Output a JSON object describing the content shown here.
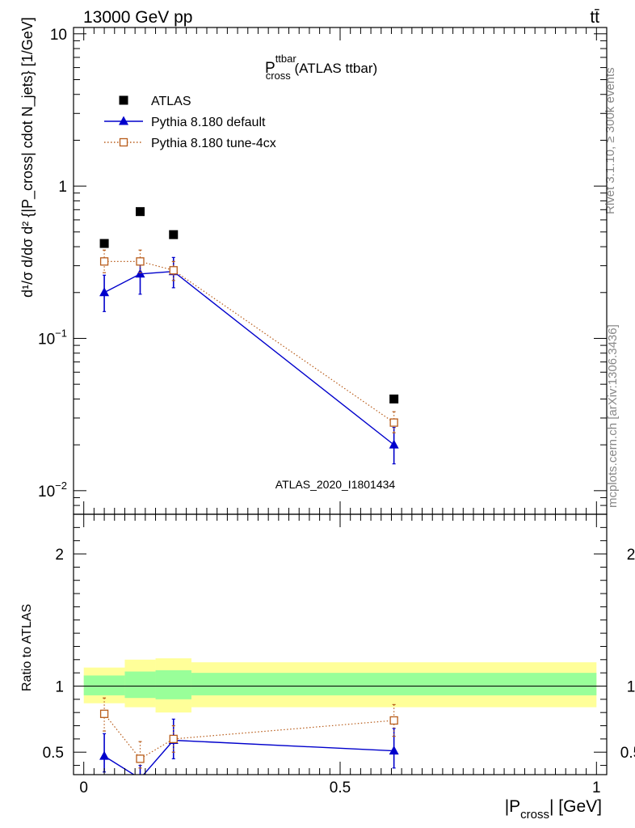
{
  "header": {
    "left": "13000 GeV pp",
    "right": "tt̄"
  },
  "side_labels": {
    "rivet": "Rivet 3.1.10, ≥ 300k events",
    "mcplots": "mcplots.cern.ch [arXiv:1306.3436]"
  },
  "watermark": "ATLAS_2020_I1801434",
  "colors": {
    "atlas": "#000000",
    "pythia_default": "#0000cc",
    "pythia_tune": "#b85c1a",
    "band_inner": "#99ff99",
    "band_outer": "#ffff99"
  },
  "chart_data": [
    {
      "type": "scatter",
      "panel": "main",
      "title": {
        "main": "P",
        "sup": "ttbar",
        "sub": "cross",
        "suffix": " (ATLAS ttbar)"
      },
      "ylabel": "d¹/σ d/dσ d² {|P_cross| cdot N_jets} [1/GeV]",
      "y_scale": "log",
      "ylim": [
        0.007,
        11
      ],
      "yticks": [
        {
          "value": 0.01,
          "base": "10",
          "exp": "−2"
        },
        {
          "value": 0.1,
          "base": "10",
          "exp": "−1"
        },
        {
          "value": 1,
          "label": "1"
        },
        {
          "value": 10,
          "label": "10"
        }
      ],
      "xlim": [
        -0.02,
        1.02
      ],
      "legend_position": "top-left",
      "series": [
        {
          "name": "ATLAS",
          "marker": "square",
          "points": [
            {
              "x": 0.04,
              "y": 0.42,
              "xlo": 0.0,
              "xhi": 0.08
            },
            {
              "x": 0.11,
              "y": 0.68,
              "xlo": 0.08,
              "xhi": 0.14
            },
            {
              "x": 0.175,
              "y": 0.48,
              "xlo": 0.14,
              "xhi": 0.21
            },
            {
              "x": 0.605,
              "y": 0.04,
              "xlo": 0.21,
              "xhi": 1.0
            }
          ]
        },
        {
          "name": "Pythia 8.180 default",
          "marker": "triangle",
          "line": "solid",
          "points": [
            {
              "x": 0.04,
              "y": 0.2,
              "ylo": 0.15,
              "yhi": 0.26
            },
            {
              "x": 0.11,
              "y": 0.265,
              "ylo": 0.195,
              "yhi": 0.33
            },
            {
              "x": 0.175,
              "y": 0.275,
              "ylo": 0.215,
              "yhi": 0.34
            },
            {
              "x": 0.605,
              "y": 0.02,
              "ylo": 0.015,
              "yhi": 0.026
            }
          ]
        },
        {
          "name": "Pythia 8.180 tune-4cx",
          "marker": "open-square",
          "line": "dotted",
          "points": [
            {
              "x": 0.04,
              "y": 0.32,
              "ylo": 0.27,
              "yhi": 0.38
            },
            {
              "x": 0.11,
              "y": 0.32,
              "ylo": 0.27,
              "yhi": 0.38
            },
            {
              "x": 0.175,
              "y": 0.28,
              "ylo": 0.24,
              "yhi": 0.32
            },
            {
              "x": 0.605,
              "y": 0.028,
              "ylo": 0.024,
              "yhi": 0.033
            }
          ]
        }
      ]
    },
    {
      "type": "scatter",
      "panel": "ratio",
      "ylabel": "Ratio to ATLAS",
      "xlabel": {
        "main": "|P",
        "sub": "cross",
        "suffix": "| [GeV]"
      },
      "ylim": [
        0.33,
        2.3
      ],
      "yticks": [
        0.5,
        1,
        2
      ],
      "ytick_labels": [
        "0.5",
        "1",
        "2"
      ],
      "xlim": [
        -0.02,
        1.02
      ],
      "xticks": [
        0,
        0.5,
        1
      ],
      "xtick_labels": [
        "0",
        "0.5",
        "1"
      ],
      "bands": [
        {
          "xlo": 0.0,
          "xhi": 0.08,
          "inner": [
            0.93,
            1.08
          ],
          "outer": [
            0.87,
            1.14
          ]
        },
        {
          "xlo": 0.08,
          "xhi": 0.14,
          "inner": [
            0.91,
            1.11
          ],
          "outer": [
            0.84,
            1.2
          ]
        },
        {
          "xlo": 0.14,
          "xhi": 0.21,
          "inner": [
            0.9,
            1.12
          ],
          "outer": [
            0.8,
            1.21
          ]
        },
        {
          "xlo": 0.21,
          "xhi": 1.0,
          "inner": [
            0.93,
            1.1
          ],
          "outer": [
            0.84,
            1.18
          ]
        }
      ],
      "series": [
        {
          "name": "Pythia 8.180 default",
          "marker": "triangle",
          "line": "solid",
          "points": [
            {
              "x": 0.04,
              "y": 0.47,
              "ylo": 0.35,
              "yhi": 0.64
            },
            {
              "x": 0.11,
              "y": 0.3,
              "ylo": 0.22,
              "yhi": 0.4
            },
            {
              "x": 0.175,
              "y": 0.59,
              "ylo": 0.45,
              "yhi": 0.75
            },
            {
              "x": 0.605,
              "y": 0.51,
              "ylo": 0.38,
              "yhi": 0.68
            }
          ]
        },
        {
          "name": "Pythia 8.180 tune-4cx",
          "marker": "open-square",
          "line": "dotted",
          "points": [
            {
              "x": 0.04,
              "y": 0.79,
              "ylo": 0.66,
              "yhi": 0.91
            },
            {
              "x": 0.11,
              "y": 0.45,
              "ylo": 0.38,
              "yhi": 0.58
            },
            {
              "x": 0.175,
              "y": 0.6,
              "ylo": 0.5,
              "yhi": 0.7
            },
            {
              "x": 0.605,
              "y": 0.74,
              "ylo": 0.62,
              "yhi": 0.86
            }
          ]
        }
      ]
    }
  ]
}
